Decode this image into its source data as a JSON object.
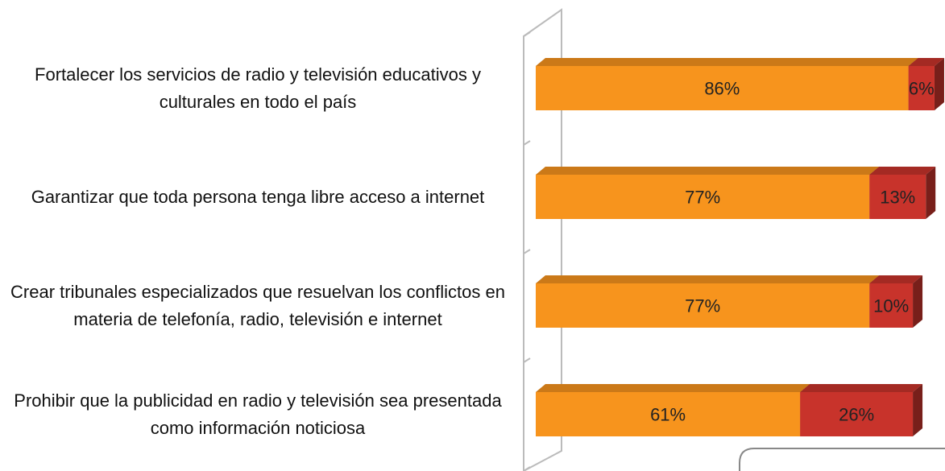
{
  "chart_data": {
    "type": "stacked-bar-horizontal",
    "categories": [
      "Fortalecer los servicios de radio y televisión educativos y culturales en todo el país",
      "Garantizar que toda persona tenga libre acceso a internet",
      "Crear tribunales especializados que resuelvan los conflictos en materia de telefonía, radio, televisión e internet",
      "Prohibir que la publicidad en radio y televisión sea presentada como información noticiosa"
    ],
    "series": [
      {
        "color": "#f7941d",
        "values": [
          86,
          77,
          77,
          61
        ],
        "value_labels": [
          "86%",
          "77%",
          "77%",
          "61%"
        ]
      },
      {
        "color": "#c8332b",
        "values": [
          6,
          13,
          10,
          26
        ],
        "value_labels": [
          "6%",
          "13%",
          "10%",
          "26%"
        ]
      }
    ],
    "xlim": [
      0,
      100
    ]
  }
}
